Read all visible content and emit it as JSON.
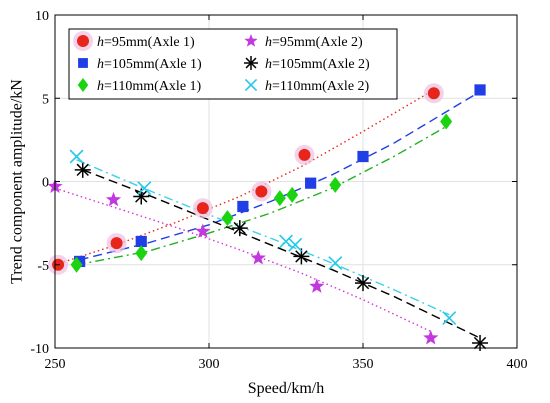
{
  "chart_data": {
    "type": "scatter",
    "xlabel": "Speed/km/h",
    "ylabel": "Trend component amplitude/kN",
    "xlim": [
      250,
      400
    ],
    "ylim": [
      -10,
      10
    ],
    "xticks": [
      250,
      300,
      350,
      400
    ],
    "yticks": [
      -10,
      -5,
      0,
      5,
      10
    ],
    "grid": true,
    "legend_position": "top-left",
    "series": [
      {
        "name": "h=95mm(Axle 1)",
        "italic_prefix": "h",
        "rest": "=95mm(Axle 1)",
        "marker": "circle",
        "color": "#e8251b",
        "line_color": "#e8251b",
        "line_style": "dotted",
        "x": [
          251,
          270,
          298,
          317,
          331,
          373
        ],
        "y": [
          -5.0,
          -3.7,
          -1.6,
          -0.6,
          1.6,
          5.3
        ],
        "trend": [
          [
            250,
            -5.0
          ],
          [
            270,
            -3.8
          ],
          [
            290,
            -2.4
          ],
          [
            310,
            -0.9
          ],
          [
            330,
            0.9
          ],
          [
            350,
            3.0
          ],
          [
            373,
            5.5
          ]
        ]
      },
      {
        "name": "h=105mm(Axle 1)",
        "italic_prefix": "h",
        "rest": "=105mm(Axle 1)",
        "marker": "square",
        "color": "#1f3ee6",
        "line_color": "#1f3ee6",
        "line_style": "dashed",
        "x": [
          258,
          278,
          311,
          333,
          350,
          388
        ],
        "y": [
          -4.8,
          -3.6,
          -1.5,
          -0.1,
          1.5,
          5.5
        ],
        "trend": [
          [
            258,
            -4.7
          ],
          [
            280,
            -3.7
          ],
          [
            300,
            -2.6
          ],
          [
            320,
            -1.2
          ],
          [
            340,
            0.4
          ],
          [
            360,
            2.3
          ],
          [
            388,
            5.4
          ]
        ]
      },
      {
        "name": "h=110mm(Axle 1)",
        "italic_prefix": "h",
        "rest": "=110mm(Axle 1)",
        "marker": "diamond",
        "color": "#19d40f",
        "line_color": "#22b020",
        "line_style": "dashdot",
        "x": [
          257,
          278,
          306,
          323,
          327,
          341,
          377
        ],
        "y": [
          -5.0,
          -4.3,
          -2.2,
          -1.0,
          -0.8,
          -0.2,
          3.6
        ],
        "trend": [
          [
            257,
            -5.0
          ],
          [
            280,
            -4.2
          ],
          [
            300,
            -3.1
          ],
          [
            320,
            -1.9
          ],
          [
            340,
            -0.4
          ],
          [
            360,
            1.5
          ],
          [
            377,
            3.3
          ]
        ]
      },
      {
        "name": "h=95mm(Axle 2)",
        "italic_prefix": "h",
        "rest": "=95mm(Axle 2)",
        "marker": "star",
        "color": "#c238df",
        "line_color": "#d433d8",
        "line_style": "dotted",
        "x": [
          250,
          269,
          298,
          316,
          335,
          372
        ],
        "y": [
          -0.3,
          -1.1,
          -3.0,
          -4.6,
          -6.3,
          -9.4
        ],
        "trend": [
          [
            250,
            -0.4
          ],
          [
            270,
            -1.6
          ],
          [
            290,
            -2.8
          ],
          [
            310,
            -4.1
          ],
          [
            330,
            -5.5
          ],
          [
            350,
            -7.1
          ],
          [
            372,
            -9.0
          ]
        ]
      },
      {
        "name": "h=105mm(Axle 2)",
        "italic_prefix": "h",
        "rest": "=105mm(Axle 2)",
        "marker": "asterisk",
        "color": "#000000",
        "line_color": "#000000",
        "line_style": "dashed",
        "x": [
          259,
          278,
          310,
          330,
          350,
          388
        ],
        "y": [
          0.7,
          -0.9,
          -2.8,
          -4.5,
          -6.1,
          -9.7
        ],
        "trend": [
          [
            259,
            0.7
          ],
          [
            280,
            -0.8
          ],
          [
            300,
            -2.3
          ],
          [
            320,
            -3.8
          ],
          [
            340,
            -5.3
          ],
          [
            360,
            -6.9
          ],
          [
            388,
            -9.4
          ]
        ]
      },
      {
        "name": "h=110mm(Axle 2)",
        "italic_prefix": "h",
        "rest": "=110mm(Axle 2)",
        "marker": "x",
        "color": "#22c9e8",
        "line_color": "#3fd0ea",
        "line_style": "dashdot",
        "x": [
          257,
          279,
          325,
          328,
          341,
          378
        ],
        "y": [
          1.5,
          -0.4,
          -3.6,
          -3.8,
          -4.9,
          -8.2
        ],
        "trend": [
          [
            257,
            1.3
          ],
          [
            280,
            -0.5
          ],
          [
            300,
            -2.0
          ],
          [
            320,
            -3.4
          ],
          [
            340,
            -4.9
          ],
          [
            360,
            -6.5
          ],
          [
            378,
            -8.0
          ]
        ]
      }
    ]
  }
}
